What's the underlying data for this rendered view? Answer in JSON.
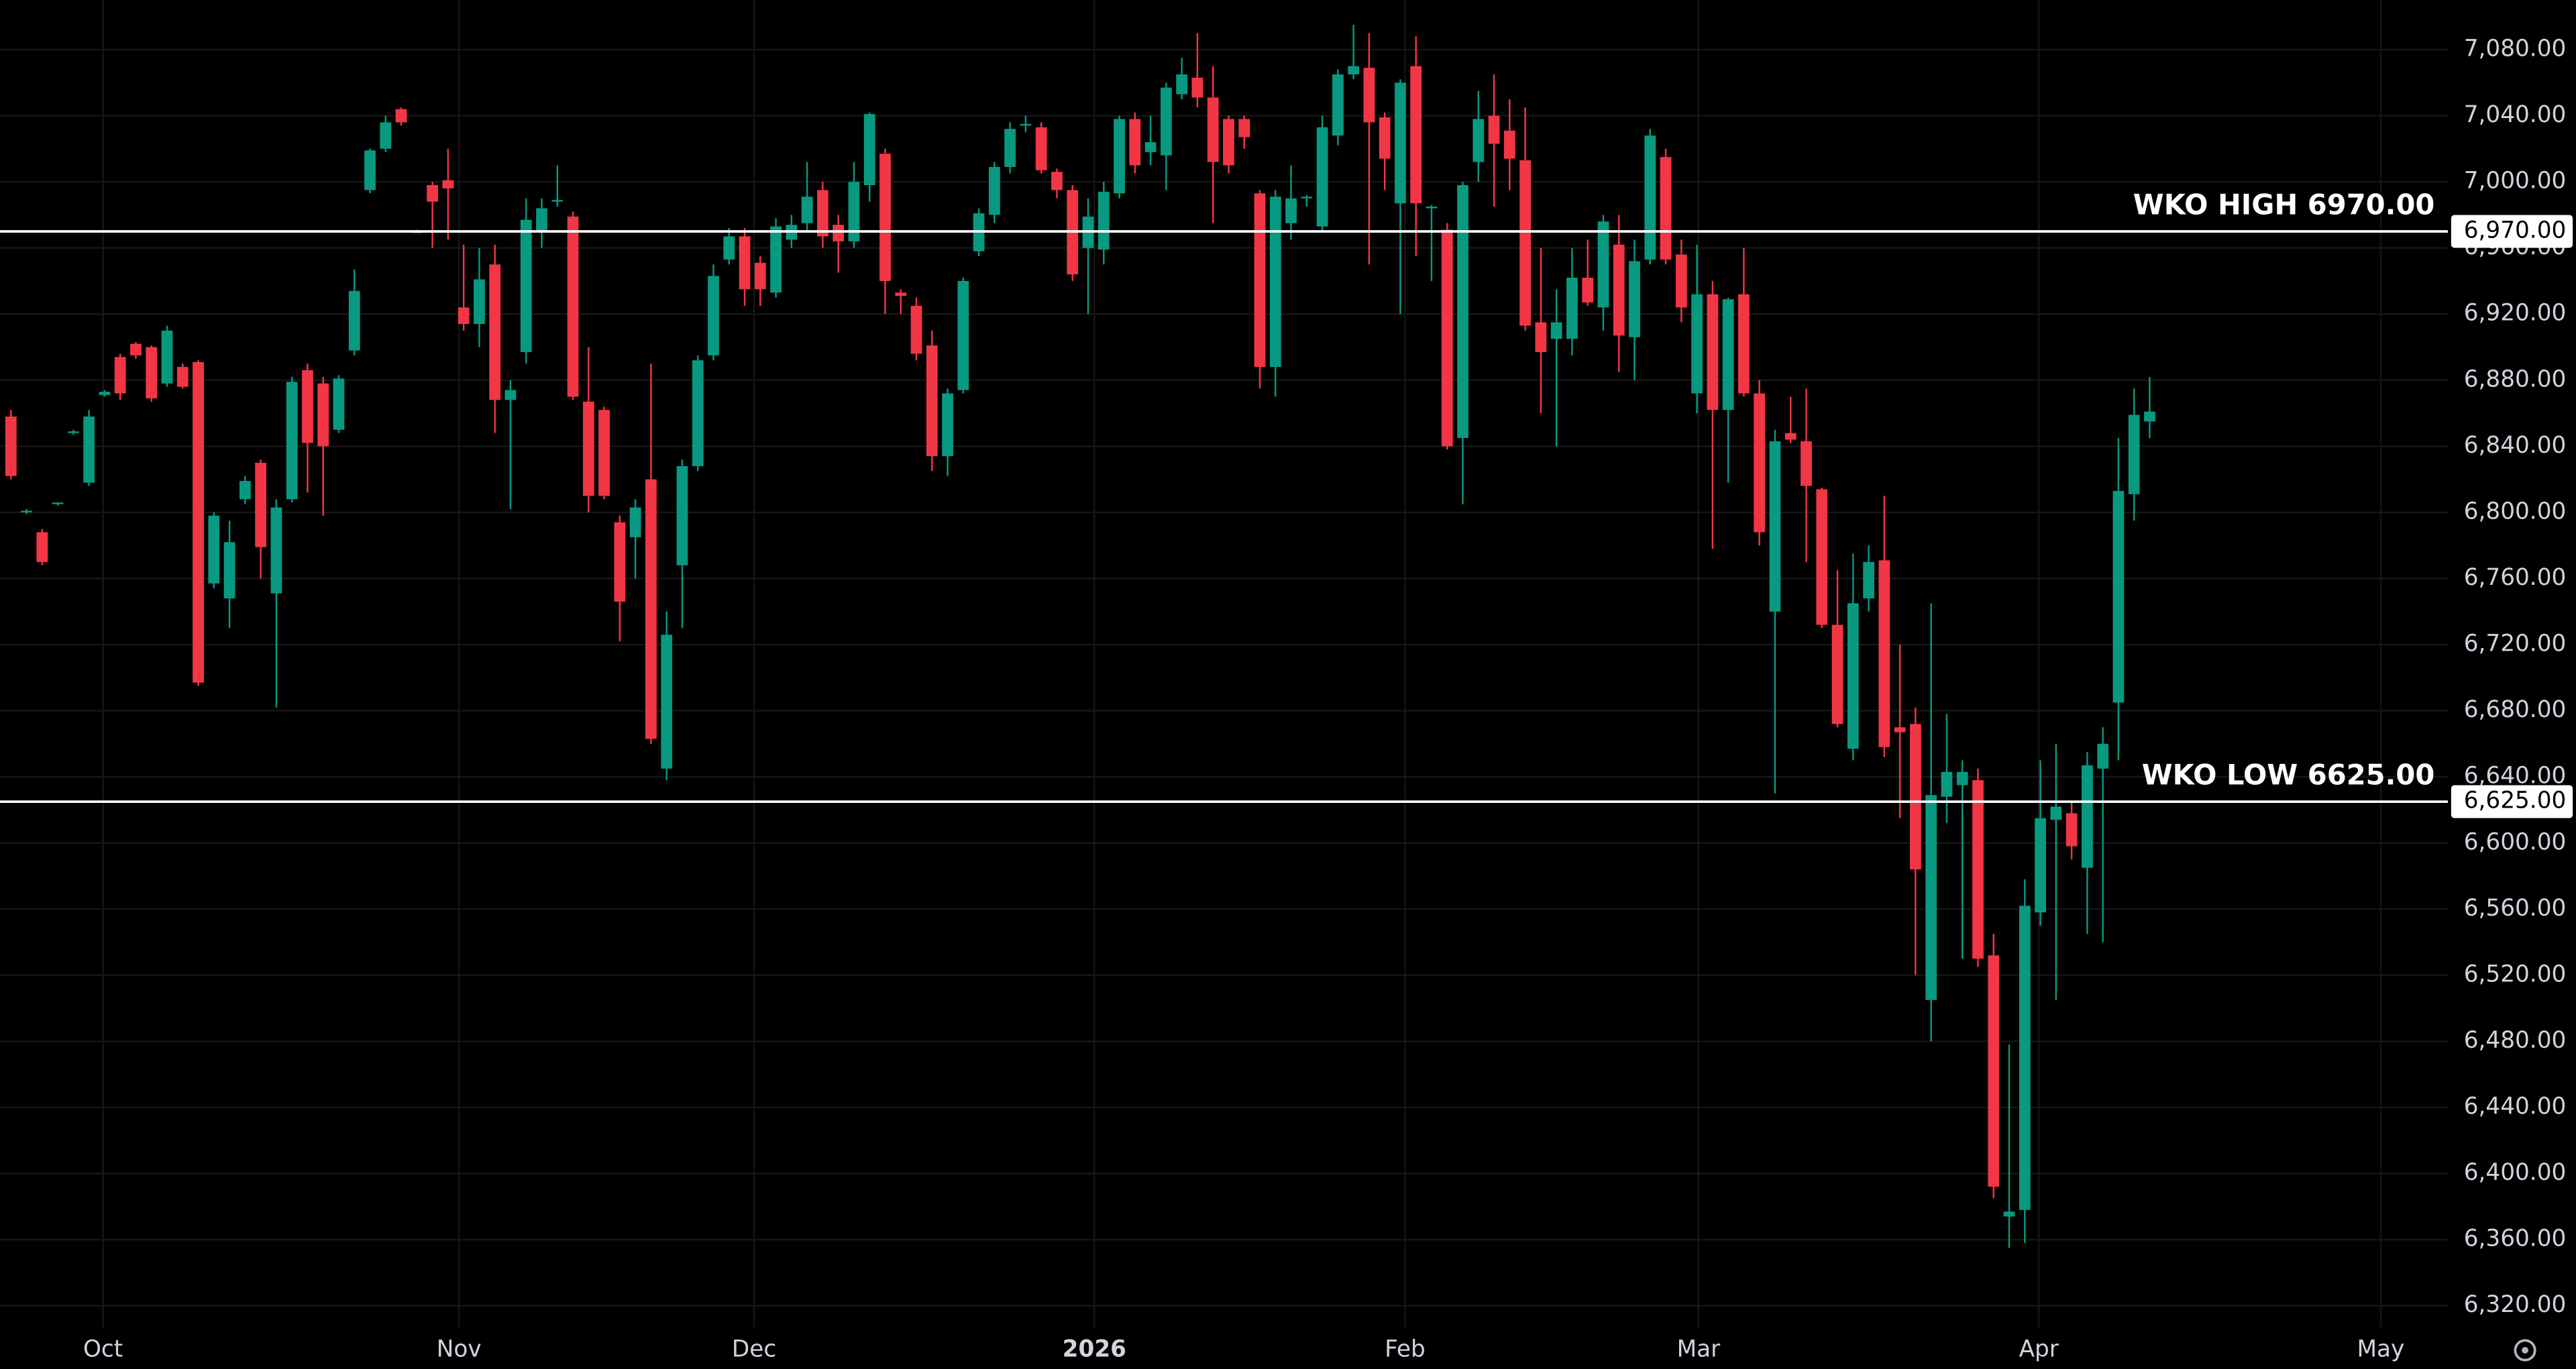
{
  "chart_data": {
    "type": "candlestick",
    "open": [
      6858,
      6800,
      6788,
      6805,
      6848,
      6818,
      6871,
      6894,
      6902,
      6900,
      6878,
      6888,
      6891,
      6757,
      6748,
      6808,
      6830,
      6751,
      6808,
      6886,
      6878,
      6850,
      6898,
      6995,
      7020,
      7044,
      6970,
      6998,
      7001,
      6924,
      6914,
      6950,
      6868,
      6897,
      6970,
      6988,
      6979,
      6867,
      6862,
      6794,
      6785,
      6820,
      6645,
      6768,
      6828,
      6895,
      6953,
      6967,
      6951,
      6933,
      6965,
      6975,
      6995,
      6974,
      6964,
      6998,
      7017,
      6933,
      6925,
      6901,
      6834,
      6874,
      6958,
      6980,
      7009,
      7034,
      7033,
      7006,
      6995,
      6960,
      6959,
      6993,
      7038,
      7018,
      7016,
      7053,
      7063,
      7051,
      7038,
      7038,
      6993,
      6888,
      6975,
      6990,
      6973,
      7028,
      7065,
      7069,
      7039,
      6987,
      7070,
      6984,
      6971,
      6845,
      7012,
      7040,
      7031,
      7013,
      6915,
      6905,
      6905,
      6942,
      6924,
      6962,
      6906,
      6953,
      7015,
      6956,
      6872,
      6932,
      6862,
      6932,
      6872,
      6740,
      6848,
      6843,
      6814,
      6732,
      6657,
      6748,
      6771,
      6670,
      6672,
      6505,
      6628,
      6635,
      6638,
      6532,
      6374,
      6378,
      6558,
      6614,
      6618,
      6585,
      6645,
      6685,
      6811,
      6855
    ],
    "high": [
      6862,
      6802,
      6790,
      6806,
      6850,
      6862,
      6874,
      6896,
      6903,
      6901,
      6913,
      6890,
      6892,
      6800,
      6795,
      6822,
      6832,
      6808,
      6882,
      6890,
      6882,
      6883,
      6947,
      7020,
      7040,
      7045,
      6971,
      7000,
      7020,
      6962,
      6960,
      6962,
      6880,
      6990,
      6990,
      7010,
      6982,
      6900,
      6864,
      6798,
      6808,
      6890,
      6740,
      6832,
      6895,
      6950,
      6972,
      6972,
      6955,
      6978,
      6980,
      7012,
      7000,
      6980,
      7012,
      7042,
      7020,
      6935,
      6930,
      6910,
      6875,
      6942,
      6984,
      7012,
      7036,
      7040,
      7036,
      7008,
      6998,
      6990,
      7000,
      7040,
      7042,
      7040,
      7060,
      7075,
      7090,
      7070,
      7040,
      7040,
      6995,
      6995,
      7010,
      6992,
      7040,
      7068,
      7095,
      7090,
      7042,
      7062,
      7088,
      6986,
      6975,
      7000,
      7055,
      7065,
      7050,
      7045,
      6960,
      6935,
      6960,
      6965,
      6980,
      6980,
      6965,
      7032,
      7020,
      6965,
      6962,
      6940,
      6930,
      6960,
      6880,
      6850,
      6870,
      6875,
      6815,
      6765,
      6775,
      6780,
      6810,
      6720,
      6682,
      6745,
      6678,
      6650,
      6645,
      6545,
      6478,
      6578,
      6650,
      6660,
      6625,
      6655,
      6670,
      6845,
      6875,
      6882
    ],
    "low": [
      6820,
      6799,
      6768,
      6804,
      6847,
      6816,
      6870,
      6868,
      6893,
      6867,
      6876,
      6875,
      6695,
      6754,
      6730,
      6805,
      6760,
      6682,
      6806,
      6812,
      6798,
      6848,
      6895,
      6993,
      7018,
      7034,
      6969,
      6960,
      6965,
      6910,
      6900,
      6848,
      6802,
      6890,
      6960,
      6985,
      6868,
      6800,
      6808,
      6722,
      6760,
      6660,
      6638,
      6730,
      6825,
      6892,
      6950,
      6925,
      6925,
      6930,
      6960,
      6970,
      6960,
      6945,
      6960,
      6988,
      6920,
      6920,
      6892,
      6825,
      6822,
      6872,
      6955,
      6975,
      7005,
      7030,
      7005,
      6990,
      6940,
      6920,
      6950,
      6990,
      7005,
      7010,
      6995,
      7050,
      7045,
      6975,
      7005,
      7020,
      6875,
      6870,
      6965,
      6985,
      6970,
      7022,
      7062,
      6950,
      6995,
      6920,
      6955,
      6940,
      6838,
      6805,
      7000,
      6985,
      6995,
      6910,
      6860,
      6840,
      6895,
      6925,
      6910,
      6885,
      6880,
      6950,
      6950,
      6915,
      6860,
      6778,
      6818,
      6870,
      6780,
      6630,
      6842,
      6770,
      6730,
      6670,
      6650,
      6740,
      6652,
      6615,
      6520,
      6480,
      6612,
      6530,
      6525,
      6385,
      6355,
      6358,
      6550,
      6505,
      6590,
      6545,
      6540,
      6650,
      6795,
      6845
    ],
    "close": [
      6822,
      6801,
      6770,
      6806,
      6849,
      6858,
      6873,
      6872,
      6895,
      6869,
      6910,
      6876,
      6697,
      6798,
      6782,
      6819,
      6779,
      6803,
      6879,
      6842,
      6840,
      6881,
      6934,
      7019,
      7036,
      7036,
      6970,
      6988,
      6996,
      6914,
      6941,
      6868,
      6874,
      6977,
      6984,
      6989,
      6870,
      6810,
      6810,
      6746,
      6803,
      6663,
      6726,
      6828,
      6892,
      6943,
      6967,
      6935,
      6935,
      6973,
      6974,
      6991,
      6967,
      6964,
      7000,
      7041,
      6940,
      6931,
      6896,
      6834,
      6872,
      6940,
      6981,
      7009,
      7032,
      7035,
      7007,
      6995,
      6944,
      6979,
      6994,
      7038,
      7010,
      7024,
      7057,
      7065,
      7051,
      7012,
      7010,
      7027,
      6888,
      6991,
      6990,
      6991,
      7033,
      7065,
      7070,
      7036,
      7014,
      7060,
      6987,
      6985,
      6840,
      6998,
      7038,
      7023,
      7014,
      6913,
      6897,
      6915,
      6942,
      6927,
      6976,
      6907,
      6952,
      7028,
      6953,
      6924,
      6932,
      6862,
      6929,
      6872,
      6788,
      6843,
      6844,
      6816,
      6732,
      6672,
      6745,
      6770,
      6658,
      6667,
      6584,
      6629,
      6643,
      6643,
      6530,
      6392,
      6377,
      6562,
      6615,
      6622,
      6598,
      6647,
      6660,
      6813,
      6859,
      6861
    ],
    "up_color": "#089981",
    "down_color": "#f23645",
    "xlim": [
      -0.7,
      156.1
    ],
    "xticks": [
      {
        "value": 5.9,
        "label": "Oct"
      },
      {
        "value": 28.7,
        "label": "Nov"
      },
      {
        "value": 47.6,
        "label": "Dec"
      },
      {
        "value": 69.4,
        "label": "2026"
      },
      {
        "value": 89.3,
        "label": "Feb"
      },
      {
        "value": 108.1,
        "label": "Mar"
      },
      {
        "value": 129.9,
        "label": "Apr"
      },
      {
        "value": 151.8,
        "label": "May"
      }
    ],
    "ylim": [
      6307,
      7110
    ],
    "yticks": [
      {
        "value": 6320,
        "label": "6,320.00"
      },
      {
        "value": 6360,
        "label": "6,360.00"
      },
      {
        "value": 6400,
        "label": "6,400.00"
      },
      {
        "value": 6440,
        "label": "6,440.00"
      },
      {
        "value": 6480,
        "label": "6,480.00"
      },
      {
        "value": 6520,
        "label": "6,520.00"
      },
      {
        "value": 6560,
        "label": "6,560.00"
      },
      {
        "value": 6600,
        "label": "6,600.00"
      },
      {
        "value": 6640,
        "label": "6,640.00"
      },
      {
        "value": 6680,
        "label": "6,680.00"
      },
      {
        "value": 6720,
        "label": "6,720.00"
      },
      {
        "value": 6760,
        "label": "6,760.00"
      },
      {
        "value": 6800,
        "label": "6,800.00"
      },
      {
        "value": 6840,
        "label": "6,840.00"
      },
      {
        "value": 6880,
        "label": "6,880.00"
      },
      {
        "value": 6920,
        "label": "6,920.00"
      },
      {
        "value": 6960,
        "label": "6,960.00"
      },
      {
        "value": 7000,
        "label": "7,000.00"
      },
      {
        "value": 7040,
        "label": "7,040.00"
      },
      {
        "value": 7080,
        "label": "7,080.00"
      }
    ],
    "grid": true,
    "hlines": [
      {
        "value": 6970,
        "label": "WKO HIGH 6970.00",
        "price_label": "6,970.00"
      },
      {
        "value": 6625,
        "label": "WKO LOW 6625.00",
        "price_label": "6,625.00"
      }
    ]
  }
}
